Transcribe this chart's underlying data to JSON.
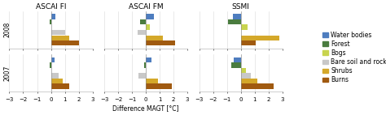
{
  "titles": [
    "ASCAI FI",
    "ASCAI FM",
    "SSMI"
  ],
  "years": [
    "2008",
    "2007"
  ],
  "categories": [
    "Water bodies",
    "Forest",
    "Bogs",
    "Bare soil and rock",
    "Shrubs",
    "Burns"
  ],
  "colors": [
    "#4e7dbf",
    "#4a7c3f",
    "#c8d44e",
    "#c8c8c8",
    "#d4a82a",
    "#a05a10"
  ],
  "xlabel": "Difference MAGT [°C]",
  "xlim": [
    -3,
    3
  ],
  "xticks": [
    -3,
    -2,
    -1,
    0,
    1,
    2,
    3
  ],
  "data": {
    "ASCAI FI": {
      "2008": [
        0.35,
        -0.08,
        null,
        1.0,
        1.3,
        2.0
      ],
      "2007": [
        0.25,
        -0.08,
        null,
        0.55,
        0.85,
        1.3
      ]
    },
    "ASCAI FM": {
      "2008": [
        0.6,
        -0.4,
        0.3,
        -0.6,
        1.2,
        2.1
      ],
      "2007": [
        0.4,
        -0.1,
        null,
        -0.55,
        0.85,
        1.85
      ]
    },
    "SSMI": {
      "2008": [
        -0.55,
        -0.9,
        0.5,
        null,
        2.8,
        1.1
      ],
      "2007": [
        -0.5,
        -0.7,
        0.4,
        0.7,
        1.2,
        2.4
      ]
    }
  },
  "background_color": "#ffffff",
  "grid_color": "#d8d8d8",
  "bar_height": 0.09,
  "bar_gap": 0.005,
  "title_fontsize": 6.5,
  "tick_fontsize": 5.0,
  "label_fontsize": 5.5,
  "legend_fontsize": 5.5,
  "ylabel_fontsize": 5.5
}
